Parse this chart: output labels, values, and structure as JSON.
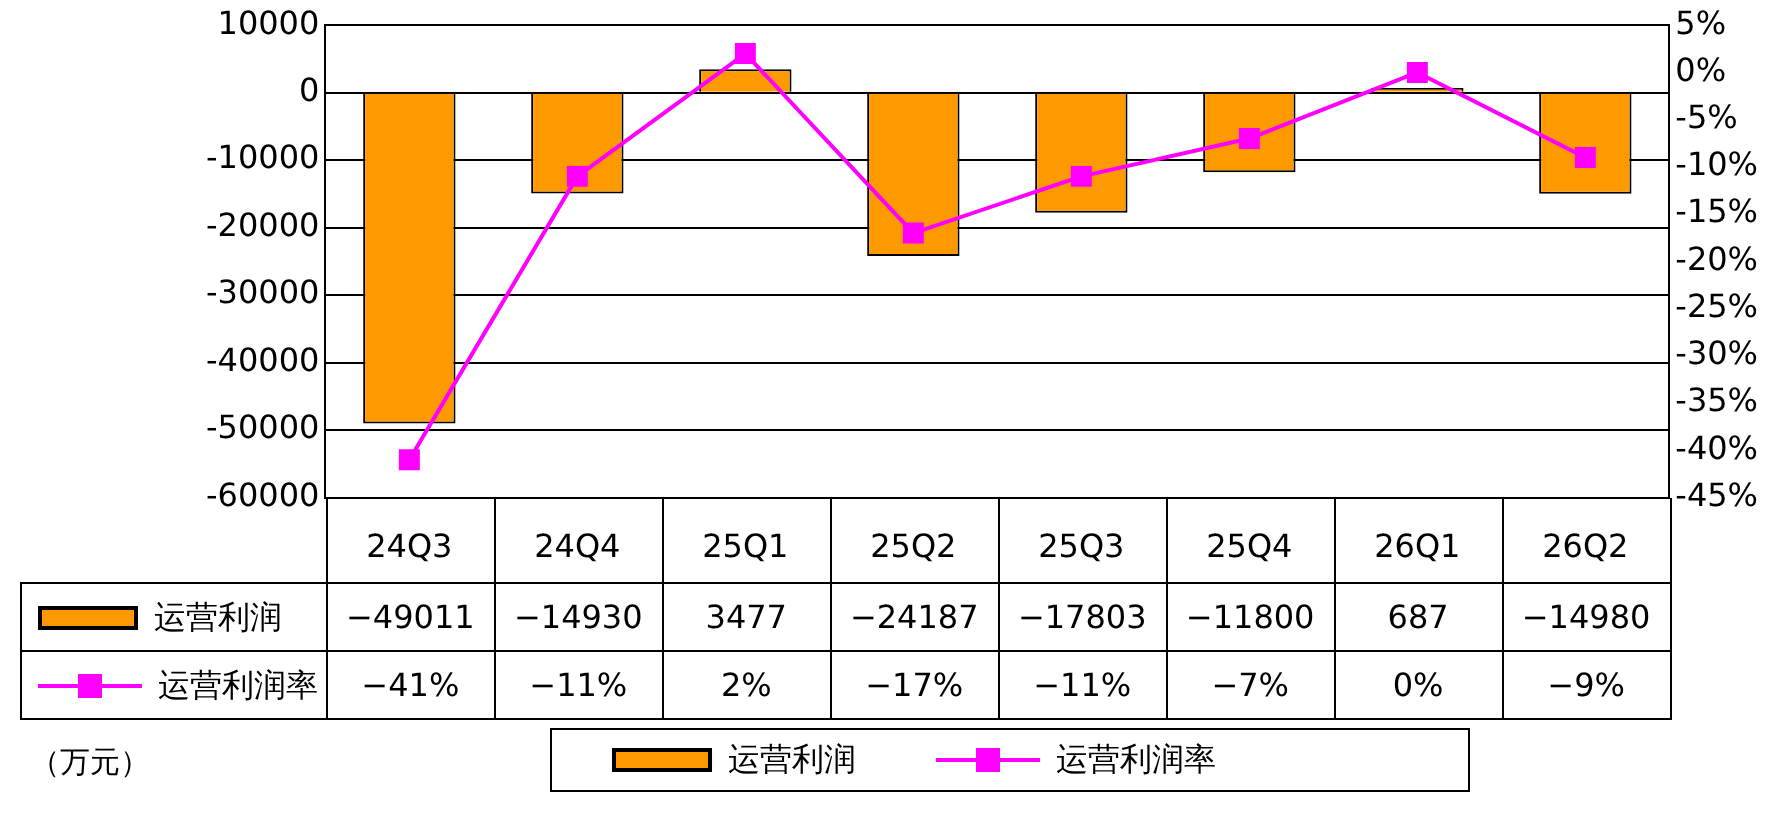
{
  "chart_data": {
    "type": "bar",
    "categories": [
      "24Q3",
      "24Q4",
      "25Q1",
      "25Q2",
      "25Q3",
      "25Q4",
      "26Q1",
      "26Q2"
    ],
    "series": [
      {
        "name": "运营利润",
        "color": "#ff9900",
        "values": [
          -49011,
          -14930,
          3477,
          -24187,
          -17803,
          -11800,
          687,
          -14980
        ],
        "value_labels": [
          "−49011",
          "−14930",
          "3477",
          "−24187",
          "−17803",
          "−11800",
          "687",
          "−14980"
        ]
      },
      {
        "name": "运营利润率",
        "type": "line",
        "axis": "y2",
        "color": "#ff00ff",
        "values": [
          -41,
          -11,
          2,
          -17,
          -11,
          -7,
          0,
          -9
        ],
        "value_labels": [
          "−41%",
          "−11%",
          "2%",
          "−17%",
          "−11%",
          "−7%",
          "0%",
          "−9%"
        ]
      }
    ],
    "ylim": [
      -60000,
      10000
    ],
    "yticks": [
      -60000,
      -50000,
      -40000,
      -30000,
      -20000,
      -10000,
      0,
      10000
    ],
    "y2lim": [
      -45,
      5
    ],
    "y2ticks": [
      {
        "value": -45,
        "label": "-45%"
      },
      {
        "value": -40,
        "label": "-40%"
      },
      {
        "value": -35,
        "label": "-35%"
      },
      {
        "value": -30,
        "label": "-30%"
      },
      {
        "value": -25,
        "label": "-25%"
      },
      {
        "value": -20,
        "label": "-20%"
      },
      {
        "value": -15,
        "label": "-15%"
      },
      {
        "value": -10,
        "label": "-10%"
      },
      {
        "value": -5,
        "label": "-5%"
      },
      {
        "value": 0,
        "label": "0%"
      },
      {
        "value": 5,
        "label": "5%"
      }
    ],
    "grid": "y",
    "legend": "bottom",
    "marker": "square",
    "line_style": "solid",
    "annotations": [
      "（万元）"
    ]
  }
}
